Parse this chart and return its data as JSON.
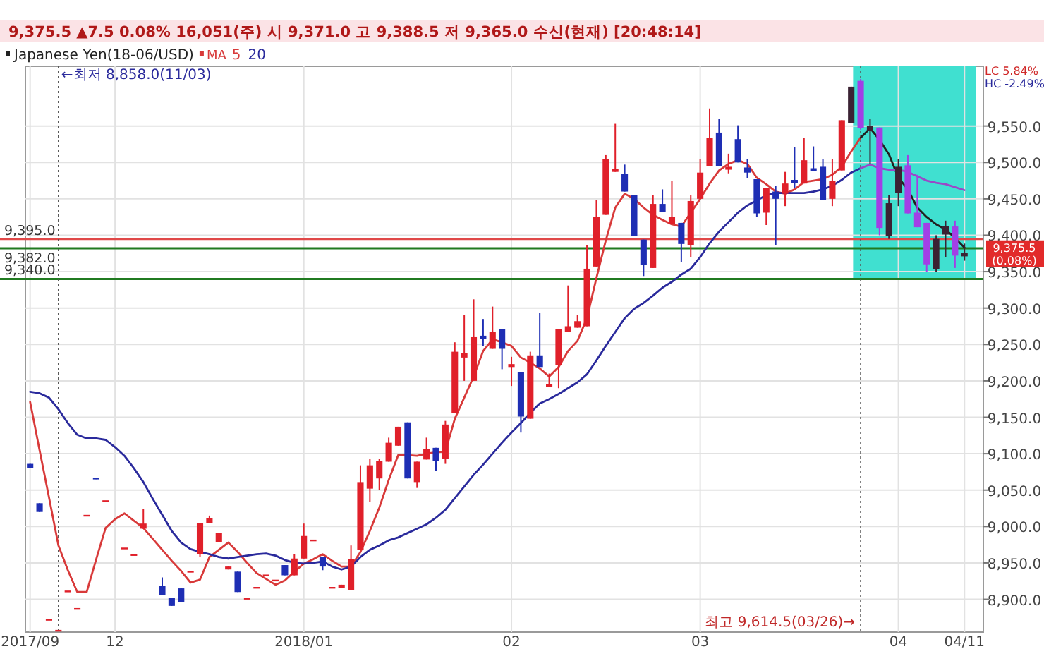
{
  "chart_data": {
    "type": "candlestick",
    "title": "Japanese Yen(18-06/USD)",
    "subtitle": "9,375.5  ▲7.5  0.08%  16,051(주)  시 9,371.0  고 9,388.5  저 9,365.0  수신(현재) [20:48:14]",
    "legend_title": "MA",
    "legend": "top left",
    "grid": true,
    "categories": [
      "2017/09",
      null,
      null,
      null,
      null,
      null,
      null,
      null,
      null,
      "12",
      null,
      null,
      null,
      null,
      null,
      null,
      null,
      null,
      null,
      null,
      null,
      null,
      null,
      null,
      null,
      null,
      null,
      null,
      null,
      "2018/01",
      null,
      null,
      null,
      null,
      null,
      null,
      null,
      null,
      null,
      null,
      null,
      null,
      null,
      null,
      null,
      null,
      null,
      null,
      null,
      null,
      null,
      "02",
      null,
      null,
      null,
      null,
      null,
      null,
      null,
      null,
      null,
      null,
      null,
      null,
      null,
      null,
      null,
      null,
      null,
      null,
      null,
      "03",
      null,
      null,
      null,
      null,
      null,
      null,
      null,
      null,
      null,
      null,
      null,
      null,
      null,
      null,
      null,
      null,
      null,
      null,
      null,
      null,
      "04",
      null,
      null,
      null,
      null,
      null,
      null,
      "04/11"
    ],
    "ylim": [
      8855,
      9632
    ],
    "yticks": [
      {
        "value": 8900,
        "label": "8,900.0"
      },
      {
        "value": 8950,
        "label": "8,950.0"
      },
      {
        "value": 9000,
        "label": "9,000.0"
      },
      {
        "value": 9050,
        "label": "9,050.0"
      },
      {
        "value": 9100,
        "label": "9,100.0"
      },
      {
        "value": 9150,
        "label": "9,150.0"
      },
      {
        "value": 9200,
        "label": "9,200.0"
      },
      {
        "value": 9250,
        "label": "9,250.0"
      },
      {
        "value": 9300,
        "label": "9,300.0"
      },
      {
        "value": 9350,
        "label": "9,350.0"
      },
      {
        "value": 9400,
        "label": "9,400.0"
      },
      {
        "value": 9450,
        "label": "9,450.0"
      },
      {
        "value": 9500,
        "label": "9,500.0"
      },
      {
        "value": 9550,
        "label": "9,550.0"
      }
    ],
    "ref_lines": [
      {
        "axis": "y",
        "value": 9395,
        "label": "9,395.0",
        "color": "#e04848"
      },
      {
        "axis": "y",
        "value": 9382,
        "label": "9,382.0",
        "color": "#207a20"
      },
      {
        "axis": "y",
        "value": 9340,
        "label": "9,340.0",
        "color": "#207a20"
      }
    ],
    "annotations": [
      "LC 5.84%",
      "HC -2.49%",
      {
        "text": "9,375.5 (0.08%)",
        "y": 9375.5
      },
      "←최저 8,858.0(11/03)",
      "최고 9,614.5(03/26)→"
    ],
    "series": [
      {
        "type": "line",
        "name": "5",
        "color": "#d83a3a",
        "values": [
          9171,
          9105,
          9040,
          8974,
          8940,
          8910,
          8910,
          8955,
          8998,
          9010,
          9018,
          9008,
          8998,
          8983,
          8968,
          8953,
          8939,
          8923,
          8927,
          8958,
          8968,
          8978,
          8965,
          8950,
          8936,
          8928,
          8920,
          8926,
          8938,
          8949,
          8955,
          8962,
          8953,
          8945,
          8945,
          8965,
          8994,
          9026,
          9064,
          9098,
          9098,
          9097,
          9100,
          9102,
          9103,
          9148,
          9177,
          9206,
          9241,
          9257,
          9253,
          9248,
          9232,
          9225,
          9217,
          9206,
          9219,
          9241,
          9255,
          9286,
          9341,
          9393,
          9438,
          9457,
          9450,
          9438,
          9428,
          9421,
          9415,
          9412,
          9431,
          9450,
          9471,
          9489,
          9498,
          9503,
          9498,
          9479,
          9470,
          9460,
          9457,
          9463,
          9473,
          9475,
          9477,
          9483,
          9494,
          9515,
          9534,
          null,
          null,
          null,
          null,
          null,
          null,
          null,
          null,
          null,
          null,
          null
        ]
      },
      {
        "type": "line",
        "color": "#202020",
        "values": [
          null,
          null,
          null,
          null,
          null,
          null,
          null,
          null,
          null,
          null,
          null,
          null,
          null,
          null,
          null,
          null,
          null,
          null,
          null,
          null,
          null,
          null,
          null,
          null,
          null,
          null,
          null,
          null,
          null,
          null,
          null,
          null,
          null,
          null,
          null,
          null,
          null,
          null,
          null,
          null,
          null,
          null,
          null,
          null,
          null,
          null,
          null,
          null,
          null,
          null,
          null,
          null,
          null,
          null,
          null,
          null,
          null,
          null,
          null,
          null,
          null,
          null,
          null,
          null,
          null,
          null,
          null,
          null,
          null,
          null,
          null,
          null,
          null,
          null,
          null,
          null,
          null,
          null,
          null,
          null,
          null,
          null,
          null,
          null,
          null,
          null,
          null,
          null,
          9534,
          9547,
          9531,
          9511,
          9479,
          9463,
          9438,
          9425,
          9415,
          9408,
          9396,
          9383
        ]
      },
      {
        "type": "line",
        "name": "20",
        "color": "#2a2a9c",
        "values": [
          9185,
          9183,
          9177,
          9161,
          9142,
          9126,
          9121,
          9121,
          9119,
          9109,
          9097,
          9080,
          9061,
          9038,
          9016,
          8994,
          8978,
          8969,
          8965,
          8962,
          8958,
          8956,
          8958,
          8960,
          8962,
          8963,
          8960,
          8954,
          8950,
          8949,
          8950,
          8952,
          8945,
          8941,
          8945,
          8958,
          8968,
          8974,
          8981,
          8985,
          8991,
          8997,
          9003,
          9012,
          9023,
          9039,
          9055,
          9071,
          9085,
          9100,
          9115,
          9129,
          9142,
          9156,
          9169,
          9175,
          9182,
          9190,
          9198,
          9209,
          9228,
          9248,
          9267,
          9286,
          9299,
          9307,
          9317,
          9328,
          9336,
          9346,
          9354,
          9370,
          9389,
          9405,
          9418,
          9431,
          9441,
          9448,
          9455,
          9458,
          9458,
          9458,
          9458,
          9460,
          9463,
          9468,
          9476,
          9486,
          9492,
          null,
          null,
          null,
          null,
          null,
          null,
          null,
          null,
          null,
          null,
          null
        ]
      },
      {
        "type": "line",
        "color": "#9a48c8",
        "values": [
          null,
          null,
          null,
          null,
          null,
          null,
          null,
          null,
          null,
          null,
          null,
          null,
          null,
          null,
          null,
          null,
          null,
          null,
          null,
          null,
          null,
          null,
          null,
          null,
          null,
          null,
          null,
          null,
          null,
          null,
          null,
          null,
          null,
          null,
          null,
          null,
          null,
          null,
          null,
          null,
          null,
          null,
          null,
          null,
          null,
          null,
          null,
          null,
          null,
          null,
          null,
          null,
          null,
          null,
          null,
          null,
          null,
          null,
          null,
          null,
          null,
          null,
          null,
          null,
          null,
          null,
          null,
          null,
          null,
          null,
          null,
          null,
          null,
          null,
          null,
          null,
          null,
          null,
          null,
          null,
          null,
          null,
          null,
          null,
          null,
          null,
          null,
          null,
          9492,
          9497,
          9492,
          9490,
          9490,
          9487,
          9481,
          9475,
          9472,
          9470,
          9466,
          9462
        ]
      },
      {
        "type": "candlestick",
        "ohlc": [
          [
            9086,
            9086,
            9080,
            9080
          ],
          [
            9032,
            9032,
            9020,
            9020
          ],
          [
            8873,
            8873,
            8873,
            8873
          ],
          [
            8858,
            8858,
            8858,
            8858
          ],
          [
            8912,
            8912,
            8912,
            8912
          ],
          [
            8888,
            8888,
            8888,
            8888
          ],
          [
            9016,
            9016,
            9016,
            9016
          ],
          [
            9067,
            9067,
            9065,
            9065
          ],
          [
            9036,
            9036,
            9036,
            9036
          ],
          null,
          [
            8971,
            8971,
            8971,
            8971
          ],
          [
            8962,
            8962,
            8962,
            8962
          ],
          [
            8997,
            9024,
            8997,
            9004
          ],
          null,
          [
            8918,
            8930,
            8906,
            8906
          ],
          [
            8902,
            8902,
            8891,
            8891
          ],
          [
            8915,
            8915,
            8896,
            8896
          ],
          [
            8939,
            8939,
            8939,
            8939
          ],
          [
            8962,
            9005,
            8958,
            9005
          ],
          [
            9005,
            9015,
            9005,
            9011
          ],
          [
            8979,
            8991,
            8979,
            8991
          ],
          [
            8941,
            8945,
            8941,
            8945
          ],
          [
            8938,
            8938,
            8910,
            8910
          ],
          [
            8902,
            8902,
            8902,
            8902
          ],
          [
            8917,
            8917,
            8917,
            8917
          ],
          [
            8934,
            8934,
            8934,
            8934
          ],
          [
            8927,
            8927,
            8927,
            8927
          ],
          [
            8947,
            8947,
            8933,
            8933
          ],
          [
            8933,
            8962,
            8933,
            8956
          ],
          [
            8956,
            9004,
            8956,
            8987
          ],
          [
            8982,
            8982,
            8982,
            8982
          ],
          [
            8958,
            8958,
            8940,
            8945
          ],
          [
            8917,
            8917,
            8917,
            8917
          ],
          [
            8916,
            8920,
            8916,
            8920
          ],
          [
            8913,
            8974,
            8913,
            8955
          ],
          [
            8968,
            9084,
            8968,
            9061
          ],
          [
            9052,
            9093,
            9034,
            9084
          ],
          [
            9066,
            9093,
            9050,
            9090
          ],
          [
            9089,
            9122,
            9089,
            9115
          ],
          [
            9111,
            9137,
            9111,
            9137
          ],
          [
            9143,
            9143,
            9066,
            9066
          ],
          [
            9061,
            9089,
            9053,
            9089
          ],
          [
            9092,
            9122,
            9092,
            9106
          ],
          [
            9108,
            9108,
            9076,
            9090
          ],
          [
            9093,
            9145,
            9086,
            9140
          ],
          [
            9156,
            9253,
            9156,
            9240
          ],
          [
            9232,
            9290,
            9200,
            9238
          ],
          [
            9200,
            9312,
            9200,
            9260
          ],
          [
            9262,
            9285,
            9248,
            9258
          ],
          [
            9244,
            9302,
            9244,
            9267
          ],
          [
            9271,
            9271,
            9216,
            9244
          ],
          [
            9219,
            9233,
            9193,
            9223
          ],
          [
            9212,
            9212,
            9129,
            9151
          ],
          [
            9148,
            9240,
            9148,
            9235
          ],
          [
            9235,
            9293,
            9219,
            9219
          ],
          [
            9192,
            9210,
            9192,
            9196
          ],
          [
            9222,
            9271,
            9190,
            9271
          ],
          [
            9267,
            9331,
            9267,
            9275
          ],
          [
            9273,
            9290,
            9273,
            9282
          ],
          [
            9275,
            9386,
            9275,
            9354
          ],
          [
            9357,
            9448,
            9357,
            9425
          ],
          [
            9428,
            9510,
            9428,
            9505
          ],
          [
            9487,
            9553,
            9487,
            9491
          ],
          [
            9484,
            9497,
            9460,
            9460
          ],
          [
            9455,
            9455,
            9399,
            9399
          ],
          [
            9394,
            9394,
            9344,
            9359
          ],
          [
            9355,
            9455,
            9355,
            9443
          ],
          [
            9443,
            9463,
            9432,
            9432
          ],
          [
            9415,
            9475,
            9415,
            9425
          ],
          [
            9417,
            9417,
            9363,
            9388
          ],
          [
            9386,
            9455,
            9370,
            9447
          ],
          [
            9450,
            9505,
            9450,
            9486
          ],
          [
            9495,
            9574,
            9495,
            9534
          ],
          [
            9541,
            9560,
            9495,
            9495
          ],
          [
            9490,
            9512,
            9485,
            9494
          ],
          [
            9532,
            9551,
            9500,
            9500
          ],
          [
            9493,
            9505,
            9478,
            9486
          ],
          [
            9477,
            9477,
            9425,
            9430
          ],
          [
            9431,
            9465,
            9414,
            9465
          ],
          [
            9460,
            9468,
            9386,
            9450
          ],
          [
            9457,
            9487,
            9440,
            9471
          ],
          [
            9476,
            9521,
            9465,
            9472
          ],
          [
            9471,
            9534,
            9471,
            9503
          ],
          [
            9492,
            9522,
            9488,
            9488
          ],
          [
            9494,
            9505,
            9448,
            9448
          ],
          [
            9450,
            9505,
            9440,
            9475
          ],
          [
            9489,
            9558,
            9489,
            9558
          ],
          [
            9554,
            9604,
            9554,
            9604
          ],
          [
            9612,
            9614.5,
            9545,
            9547
          ],
          [
            9544,
            9560,
            9498,
            9550
          ],
          [
            9548,
            9548,
            9400,
            9410
          ],
          [
            9399,
            9455,
            9395,
            9444
          ],
          [
            9458,
            9505,
            9440,
            9494
          ],
          [
            9496,
            9510,
            9430,
            9430
          ],
          [
            9431,
            9483,
            9411,
            9411
          ],
          [
            9417,
            9417,
            9350,
            9360
          ],
          [
            9353,
            9400,
            9350,
            9395
          ],
          [
            9401,
            9420,
            9370,
            9413
          ],
          [
            9412,
            9420,
            9355,
            9372
          ],
          [
            9371,
            9388.5,
            9365,
            9375.5
          ]
        ],
        "colors": [
          "#1e2eb4",
          "#1e2eb4",
          "#e0202a",
          "#e0202a",
          "#e0202a",
          "#e0202a",
          "#e0202a",
          "#1e2eb4",
          "#e0202a",
          null,
          "#e0202a",
          "#e0202a",
          "#e0202a",
          null,
          "#1e2eb4",
          "#1e2eb4",
          "#1e2eb4",
          "#e0202a",
          "#e0202a",
          "#e0202a",
          "#e0202a",
          "#e0202a",
          "#1e2eb4",
          "#e0202a",
          "#e0202a",
          "#e0202a",
          "#e0202a",
          "#1e2eb4",
          "#e0202a",
          "#e0202a",
          "#e0202a",
          "#1e2eb4",
          "#e0202a",
          "#e0202a",
          "#e0202a",
          "#e0202a",
          "#e0202a",
          "#e0202a",
          "#e0202a",
          "#e0202a",
          "#1e2eb4",
          "#e0202a",
          "#e0202a",
          "#1e2eb4",
          "#e0202a",
          "#e0202a",
          "#e0202a",
          "#e0202a",
          "#1e2eb4",
          "#e0202a",
          "#1e2eb4",
          "#e0202a",
          "#1e2eb4",
          "#e0202a",
          "#1e2eb4",
          "#e0202a",
          "#e0202a",
          "#e0202a",
          "#e0202a",
          "#e0202a",
          "#e0202a",
          "#e0202a",
          "#e0202a",
          "#1e2eb4",
          "#1e2eb4",
          "#1e2eb4",
          "#e0202a",
          "#1e2eb4",
          "#e0202a",
          "#1e2eb4",
          "#e0202a",
          "#e0202a",
          "#e0202a",
          "#1e2eb4",
          "#e0202a",
          "#1e2eb4",
          "#1e2eb4",
          "#1e2eb4",
          "#e0202a",
          "#1e2eb4",
          "#e0202a",
          "#1e2eb4",
          "#e0202a",
          "#1e2eb4",
          "#1e2eb4",
          "#e0202a",
          "#e0202a",
          "#3b2233",
          "#a23fe6",
          "#3b2233",
          "#a23fe6",
          "#3b2233",
          "#3b2233",
          "#a23fe6",
          "#a23fe6",
          "#a23fe6",
          "#3b2233",
          "#3b2233",
          "#a23fe6",
          "#3b2233"
        ]
      }
    ]
  }
}
